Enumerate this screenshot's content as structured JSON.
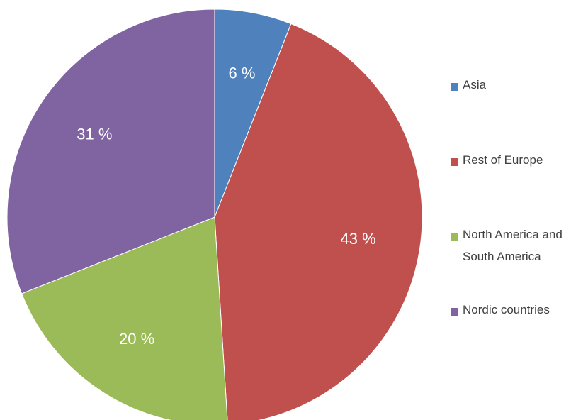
{
  "chart_data": {
    "type": "pie",
    "categories": [
      "Asia",
      "Rest of Europe",
      "North America and South America",
      "Nordic countries"
    ],
    "values": [
      6,
      43,
      20,
      31
    ],
    "value_labels": [
      "6 %",
      "43 %",
      "20 %",
      "31 %"
    ],
    "colors": [
      "#4f81bd",
      "#c0504d",
      "#9bbb59",
      "#8064a2"
    ],
    "legend": "right"
  }
}
